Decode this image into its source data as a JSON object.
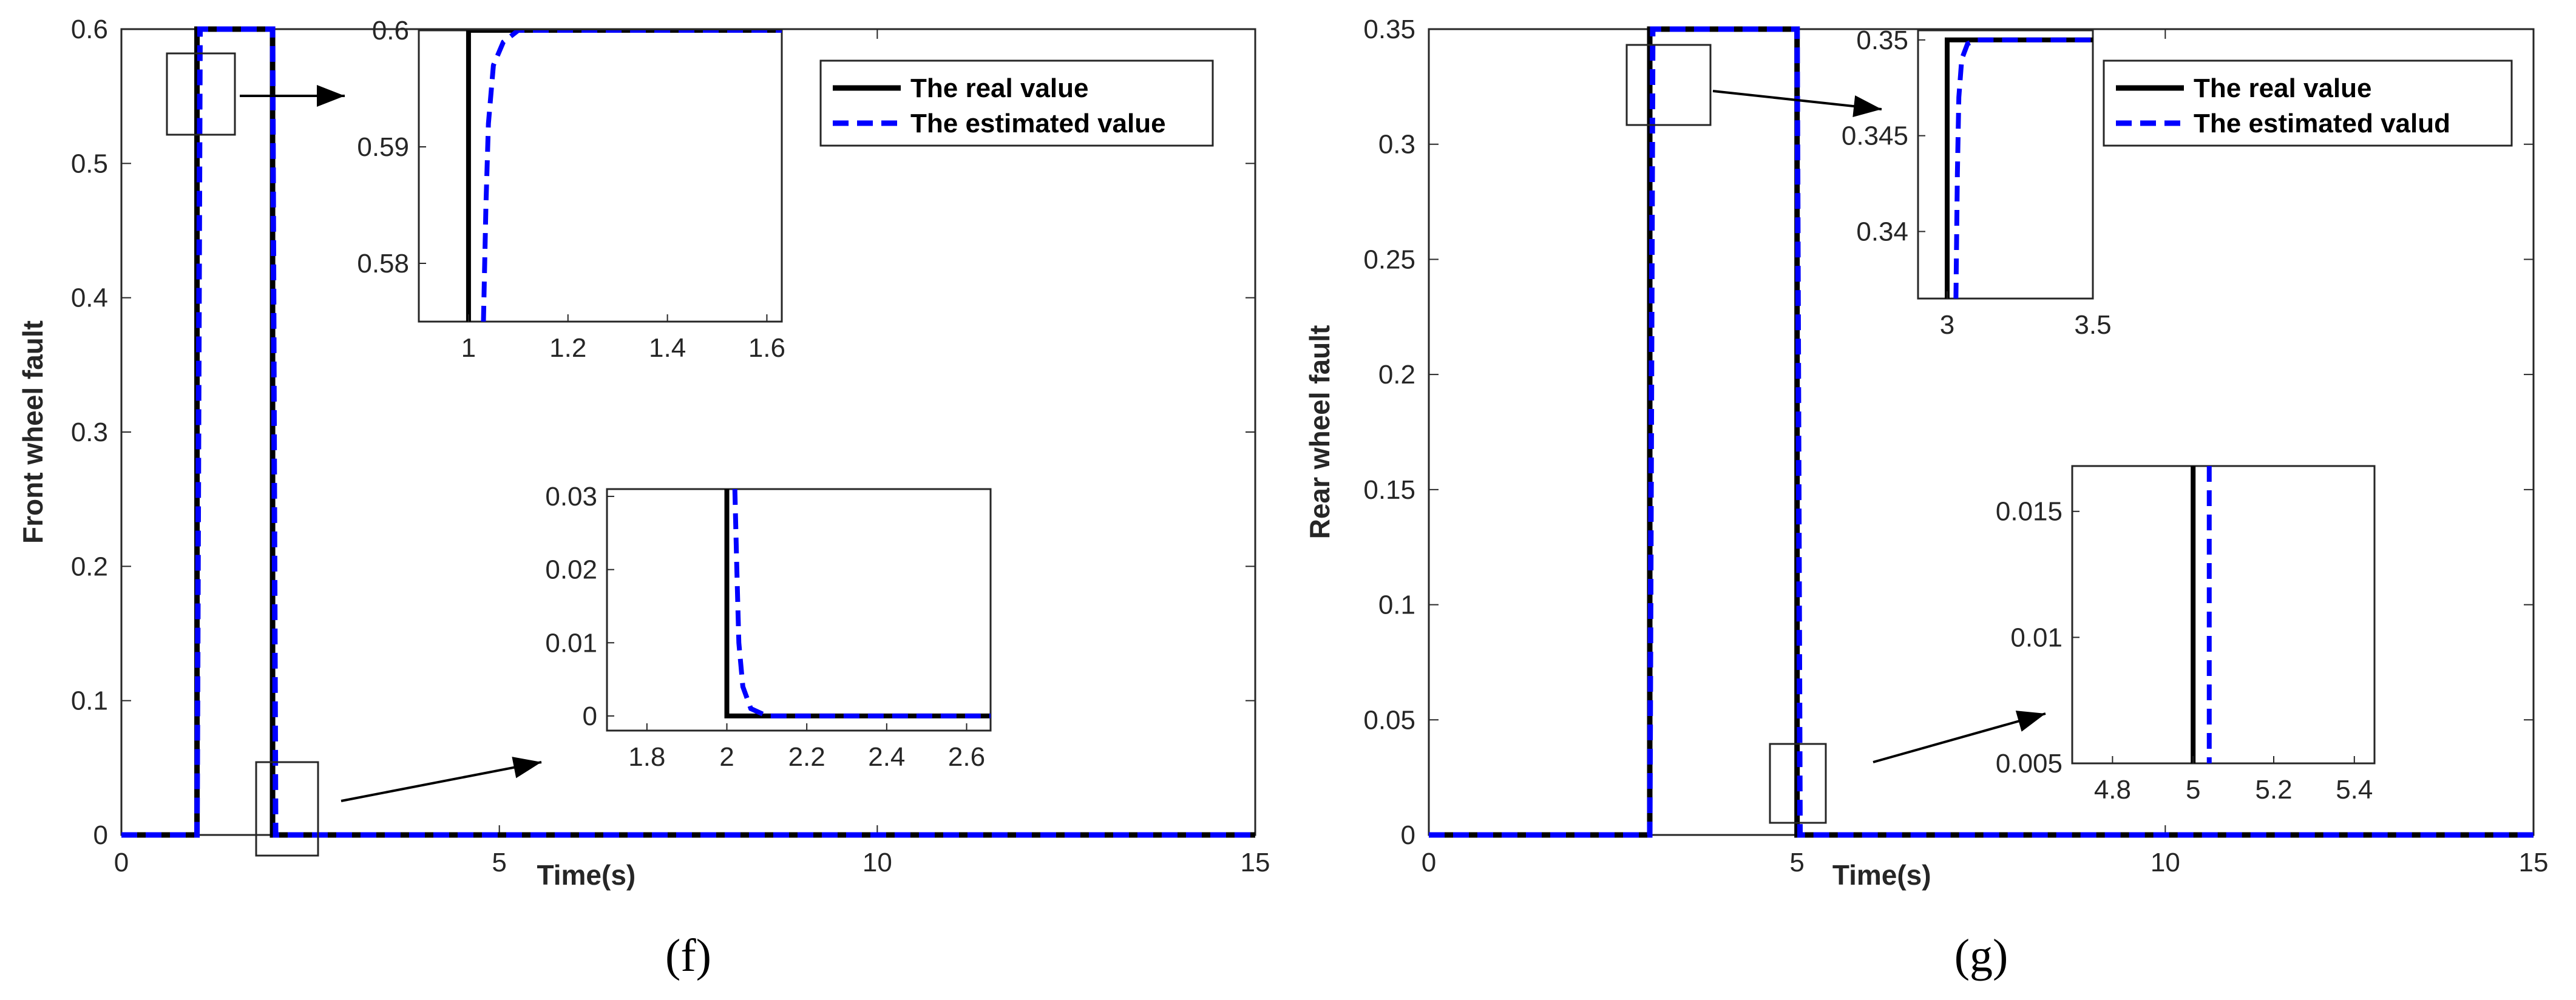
{
  "colors": {
    "real": "#000000",
    "estimated": "#0000ff",
    "axis": "#262626"
  },
  "chart_data": [
    {
      "type": "line",
      "caption": "(f)",
      "xlabel": "Time(s)",
      "ylabel": "Front wheel fault",
      "xlim": [
        0,
        15
      ],
      "ylim": [
        0,
        0.6
      ],
      "xticks": [
        "0",
        "5",
        "10",
        "15"
      ],
      "yticks": [
        "0",
        "0.1",
        "0.2",
        "0.3",
        "0.4",
        "0.5",
        "0.6"
      ],
      "legend": {
        "position": "top-right",
        "entries": [
          "The real value",
          "The estimated value"
        ]
      },
      "series": [
        {
          "name": "The real value",
          "x": [
            0,
            1,
            1,
            2,
            2,
            15
          ],
          "y": [
            0,
            0,
            0.6,
            0.6,
            0,
            0
          ]
        },
        {
          "name": "The estimated value",
          "x": [
            0,
            1,
            1.04,
            2,
            2.04,
            15
          ],
          "y": [
            0,
            0,
            0.6,
            0.6,
            0,
            0
          ]
        }
      ],
      "insets": [
        {
          "xlim": [
            0.9,
            1.63
          ],
          "ylim": [
            0.575,
            0.6
          ],
          "xticks": [
            "1",
            "1.2",
            "1.4",
            "1.6"
          ],
          "yticks": [
            "0.58",
            "0.59",
            "0.6"
          ],
          "series": [
            {
              "name": "The real value",
              "x": [
                1,
                1,
                1.63
              ],
              "y": [
                0.575,
                0.6,
                0.6
              ]
            },
            {
              "name": "The estimated value",
              "x": [
                1.03,
                1.035,
                1.04,
                1.05,
                1.07,
                1.1,
                1.63
              ],
              "y": [
                0.575,
                0.585,
                0.592,
                0.597,
                0.599,
                0.6,
                0.6
              ]
            }
          ]
        },
        {
          "xlim": [
            1.7,
            2.66
          ],
          "ylim": [
            -0.002,
            0.031
          ],
          "xticks": [
            "1.8",
            "2",
            "2.2",
            "2.4",
            "2.6"
          ],
          "yticks": [
            "0",
            "0.01",
            "0.02",
            "0.03"
          ],
          "series": [
            {
              "name": "The real value",
              "x": [
                2,
                2,
                2.66
              ],
              "y": [
                0.031,
                0,
                0
              ]
            },
            {
              "name": "The estimated value",
              "x": [
                2.02,
                2.025,
                2.03,
                2.04,
                2.06,
                2.1,
                2.66
              ],
              "y": [
                0.031,
                0.02,
                0.01,
                0.004,
                0.001,
                0,
                0
              ]
            }
          ]
        }
      ]
    },
    {
      "type": "line",
      "caption": "(g)",
      "xlabel": "Time(s)",
      "ylabel": "Rear wheel fault",
      "xlim": [
        0,
        15
      ],
      "ylim": [
        0,
        0.35
      ],
      "xticks": [
        "0",
        "5",
        "10",
        "15"
      ],
      "yticks": [
        "0",
        "0.05",
        "0.1",
        "0.15",
        "0.2",
        "0.25",
        "0.3",
        "0.35"
      ],
      "legend": {
        "position": "top-right",
        "entries": [
          "The real value",
          "The estimated valud"
        ]
      },
      "series": [
        {
          "name": "The real value",
          "x": [
            0,
            3,
            3,
            5,
            5,
            15
          ],
          "y": [
            0,
            0,
            0.35,
            0.35,
            0,
            0
          ]
        },
        {
          "name": "The estimated valud",
          "x": [
            0,
            3,
            3.04,
            5,
            5.04,
            15
          ],
          "y": [
            0,
            0,
            0.35,
            0.35,
            0,
            0
          ]
        }
      ]
    }
  ]
}
